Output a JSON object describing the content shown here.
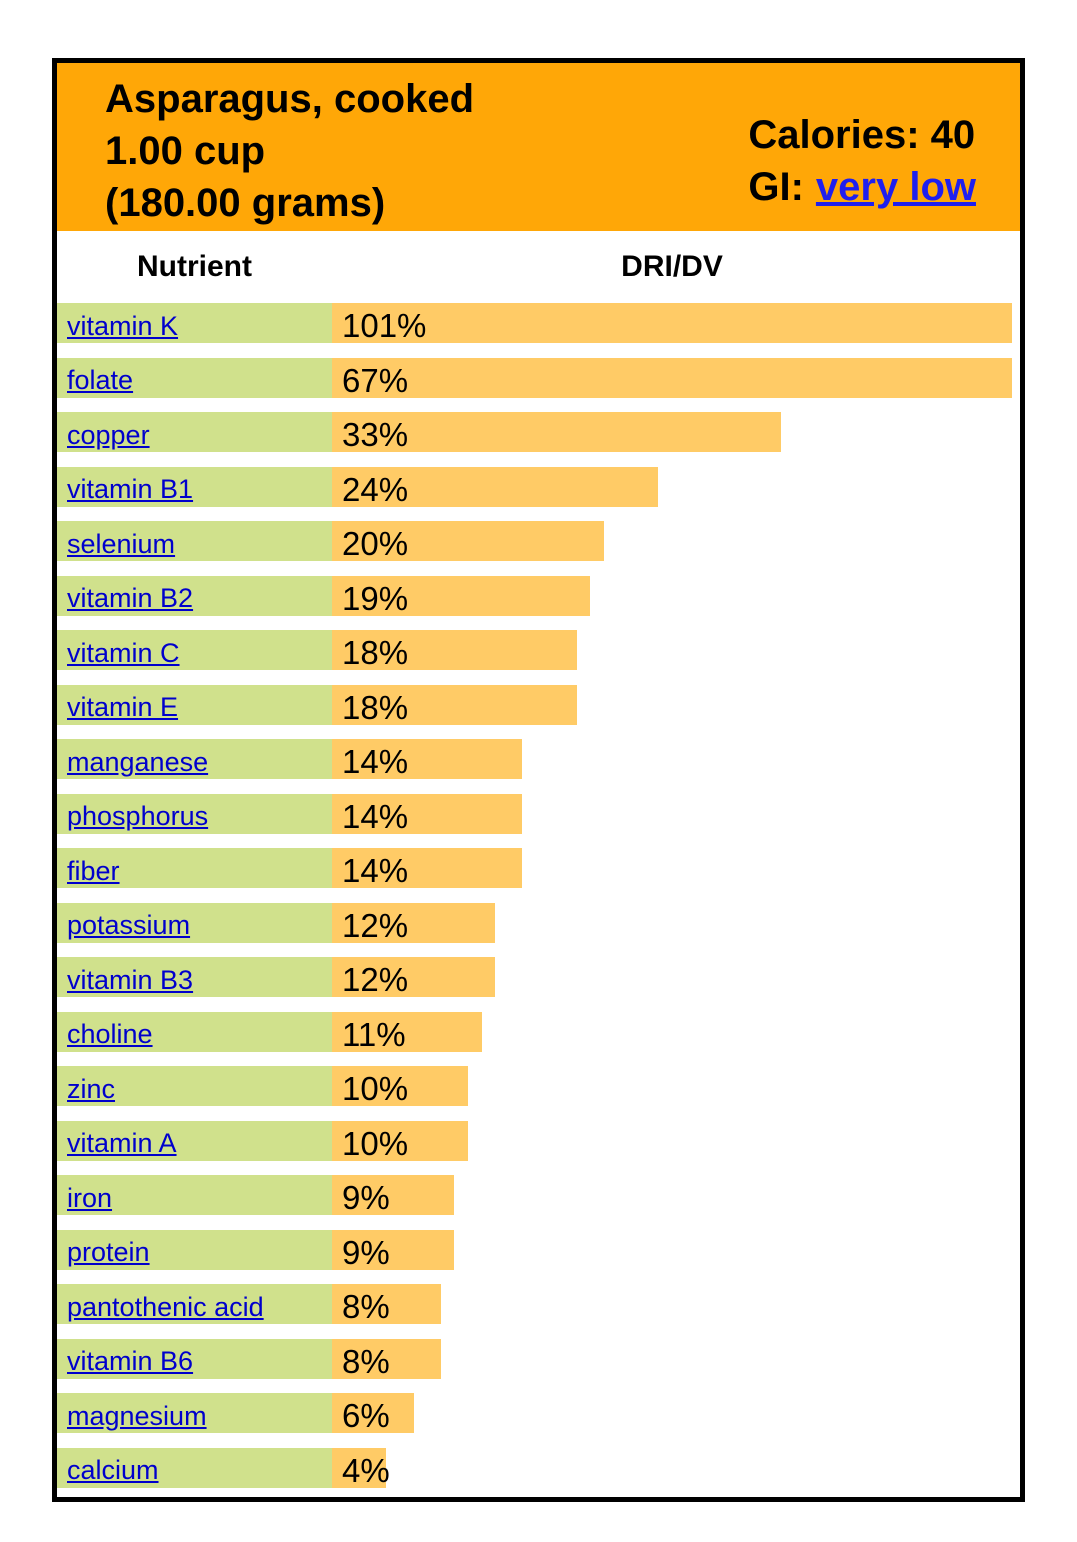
{
  "header": {
    "title_lines": [
      "Asparagus, cooked",
      "1.00 cup",
      "(180.00 grams)"
    ],
    "calories": "Calories: 40",
    "gi_label": "GI:",
    "gi_value": "very low"
  },
  "table": {
    "columns": [
      "Nutrient",
      "DRI/DV"
    ],
    "rows": [
      {
        "nutrient": "vitamin K",
        "dri_dv": "101%",
        "value": 101
      },
      {
        "nutrient": "folate",
        "dri_dv": "67%",
        "value": 67
      },
      {
        "nutrient": "copper",
        "dri_dv": "33%",
        "value": 33
      },
      {
        "nutrient": "vitamin B1",
        "dri_dv": "24%",
        "value": 24
      },
      {
        "nutrient": "selenium",
        "dri_dv": "20%",
        "value": 20
      },
      {
        "nutrient": "vitamin B2",
        "dri_dv": "19%",
        "value": 19
      },
      {
        "nutrient": "vitamin C",
        "dri_dv": "18%",
        "value": 18
      },
      {
        "nutrient": "vitamin E",
        "dri_dv": "18%",
        "value": 18
      },
      {
        "nutrient": "manganese",
        "dri_dv": "14%",
        "value": 14
      },
      {
        "nutrient": "phosphorus",
        "dri_dv": "14%",
        "value": 14
      },
      {
        "nutrient": "fiber",
        "dri_dv": "14%",
        "value": 14
      },
      {
        "nutrient": "potassium",
        "dri_dv": "12%",
        "value": 12
      },
      {
        "nutrient": "vitamin B3",
        "dri_dv": "12%",
        "value": 12
      },
      {
        "nutrient": "choline",
        "dri_dv": "11%",
        "value": 11
      },
      {
        "nutrient": "zinc",
        "dri_dv": "10%",
        "value": 10
      },
      {
        "nutrient": "vitamin A",
        "dri_dv": "10%",
        "value": 10
      },
      {
        "nutrient": "iron",
        "dri_dv": "9%",
        "value": 9
      },
      {
        "nutrient": "protein",
        "dri_dv": "9%",
        "value": 9
      },
      {
        "nutrient": "pantothenic acid",
        "dri_dv": "8%",
        "value": 8
      },
      {
        "nutrient": "vitamin B6",
        "dri_dv": "8%",
        "value": 8
      },
      {
        "nutrient": "magnesium",
        "dri_dv": "6%",
        "value": 6
      },
      {
        "nutrient": "calcium",
        "dri_dv": "4%",
        "value": 4
      }
    ]
  },
  "colors": {
    "header_bg": "#ffa707",
    "bar_fill": "#ffcb66",
    "label_bg": "#d0e18c",
    "link_blue": "#0000cc",
    "gi_link_blue": "#1f1fee",
    "border": "#000000"
  },
  "chart_data": {
    "type": "bar",
    "orientation": "horizontal",
    "title": "Asparagus, cooked 1.00 cup (180.00 grams)",
    "subtitle": "Calories: 40, GI: very low",
    "xlabel": "DRI/DV",
    "ylabel": "Nutrient",
    "value_unit": "%",
    "categories": [
      "vitamin K",
      "folate",
      "copper",
      "vitamin B1",
      "selenium",
      "vitamin B2",
      "vitamin C",
      "vitamin E",
      "manganese",
      "phosphorus",
      "fiber",
      "potassium",
      "vitamin B3",
      "choline",
      "zinc",
      "vitamin A",
      "iron",
      "protein",
      "pantothenic acid",
      "vitamin B6",
      "magnesium",
      "calcium"
    ],
    "values": [
      101,
      67,
      33,
      24,
      20,
      19,
      18,
      18,
      14,
      14,
      14,
      12,
      12,
      11,
      10,
      10,
      9,
      9,
      8,
      8,
      6,
      4
    ],
    "data_labels": [
      "101%",
      "67%",
      "33%",
      "24%",
      "20%",
      "19%",
      "18%",
      "18%",
      "14%",
      "14%",
      "14%",
      "12%",
      "12%",
      "11%",
      "10%",
      "10%",
      "9%",
      "9%",
      "8%",
      "8%",
      "6%",
      "4%"
    ],
    "bar_track_full_scale_pct": 50,
    "grid": false,
    "legend": false
  }
}
